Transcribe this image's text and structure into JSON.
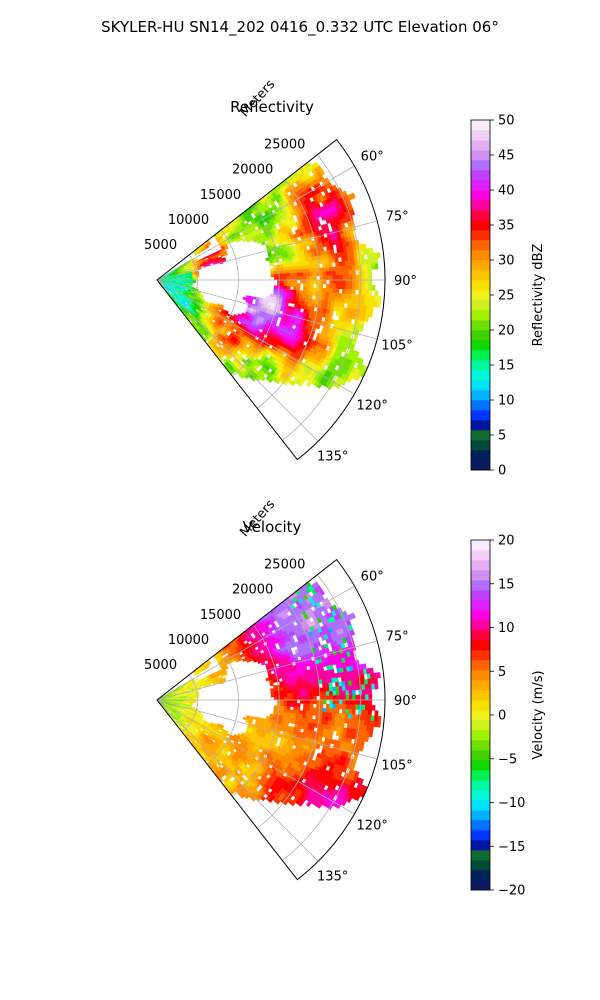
{
  "figure_title": "SKYLER-HU  SN14_202  0416_0.332 UTC Elevation 06°",
  "chart_data": [
    {
      "type": "heatmap",
      "projection": "polar-sector",
      "title": "Reflectivity",
      "radial_axis_label": "Meters",
      "radial_ticks": [
        5000,
        10000,
        15000,
        20000,
        25000
      ],
      "radial_tick_labels": [
        "5000",
        "10000",
        "15000",
        "20000",
        "25000"
      ],
      "rmax": 28000,
      "theta_range_deg": [
        52,
        142
      ],
      "theta_ticks_deg": [
        60,
        75,
        90,
        105,
        120,
        135
      ],
      "theta_tick_labels": [
        "60°",
        "75°",
        "90°",
        "105°",
        "120°",
        "135°"
      ],
      "grid": true,
      "colorbar": {
        "label": "Reflectivity dBZ",
        "range": [
          0,
          50
        ],
        "ticks": [
          0,
          5,
          10,
          15,
          20,
          25,
          30,
          35,
          40,
          45,
          50
        ],
        "tick_labels": [
          "0",
          "5",
          "10",
          "15",
          "20",
          "25",
          "30",
          "35",
          "40",
          "45",
          "50"
        ]
      },
      "value_field": {
        "background": 21,
        "noise": 4,
        "cells": [
          {
            "r": 7000,
            "theta": 82,
            "peak": 44,
            "radius": 2200
          },
          {
            "r": 14000,
            "theta": 104,
            "peak": 42,
            "radius": 2500
          },
          {
            "r": 19000,
            "theta": 112,
            "peak": 36,
            "radius": 2500
          },
          {
            "r": 22000,
            "theta": 70,
            "peak": 35,
            "radius": 3500
          },
          {
            "r": 21000,
            "theta": 92,
            "peak": 29,
            "radius": 4000
          },
          {
            "r": 11000,
            "theta": 120,
            "peak": 33,
            "radius": 2500
          },
          {
            "r": 3000,
            "theta": 92,
            "peak": 12,
            "radius": 2500
          },
          {
            "r": 24000,
            "theta": 58,
            "peak": 25,
            "radius": 3000
          }
        ]
      }
    },
    {
      "type": "heatmap",
      "projection": "polar-sector",
      "title": "Velocity",
      "radial_axis_label": "Meters",
      "radial_ticks": [
        5000,
        10000,
        15000,
        20000,
        25000
      ],
      "radial_tick_labels": [
        "5000",
        "10000",
        "15000",
        "20000",
        "25000"
      ],
      "rmax": 28000,
      "theta_range_deg": [
        52,
        142
      ],
      "theta_ticks_deg": [
        60,
        75,
        90,
        105,
        120,
        135
      ],
      "theta_tick_labels": [
        "60°",
        "75°",
        "90°",
        "105°",
        "120°",
        "135°"
      ],
      "grid": true,
      "colorbar": {
        "label": "Velocity (m/s)",
        "range": [
          -20,
          20
        ],
        "ticks": [
          -20,
          -15,
          -10,
          -5,
          0,
          5,
          10,
          15,
          20
        ],
        "tick_labels": [
          "−20",
          "−15",
          "−10",
          "−5",
          "0",
          "5",
          "10",
          "15",
          "20"
        ]
      },
      "value_field": {
        "near_range_value": -4,
        "far_range_value": 15,
        "mid_value": 3,
        "east_value": 12,
        "noise": 2
      }
    }
  ],
  "colormap": [
    "#0b1a5e",
    "#00205c",
    "#004a3a",
    "#106a2e",
    "#0016a0",
    "#0036ff",
    "#0072ff",
    "#00b2ff",
    "#00e0ff",
    "#00f8d6",
    "#00f8a0",
    "#00f050",
    "#10d800",
    "#40d000",
    "#70e000",
    "#a0f000",
    "#ccf020",
    "#f0f020",
    "#f8e000",
    "#ffc400",
    "#ffa800",
    "#ff8c00",
    "#ff6400",
    "#ff3000",
    "#ff0000",
    "#ff0040",
    "#ff00a0",
    "#ff00e0",
    "#e020ff",
    "#c040ff",
    "#b070ff",
    "#d090f0",
    "#e4b0f4",
    "#f0d0f8",
    "#f8ecfc"
  ]
}
